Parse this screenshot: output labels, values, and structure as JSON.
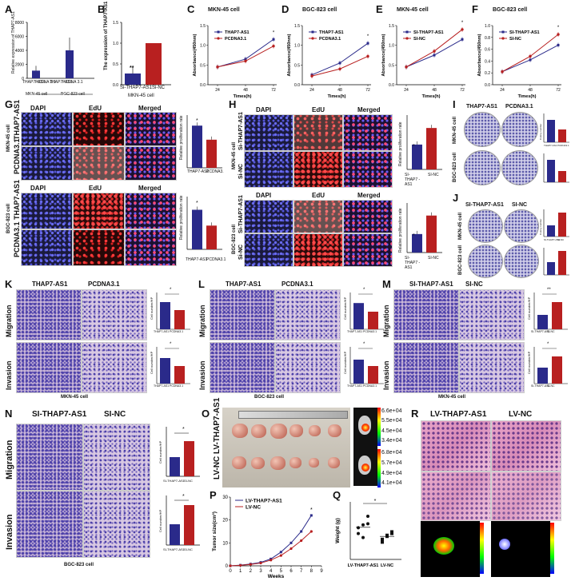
{
  "panels": {
    "A": {
      "letter": "A",
      "ylabel": "Relative expression of THAP7-AS1",
      "yticks": [
        "8000",
        "6000",
        "4000",
        "2000",
        "0"
      ],
      "xcats": [
        "THAP7 -AS1",
        "PCDNA 3.1",
        "THAP7 -AS1",
        "PCDNA 3.1"
      ],
      "groups": [
        "MKN-45 cell",
        "BGC-823 cell"
      ]
    },
    "B": {
      "letter": "B",
      "ylabel": "The expression of THAP7-AS1",
      "yticks": [
        "1.5",
        "1.0",
        "0.5",
        "0.0"
      ],
      "xcats": [
        "Si-THAP7-AS1",
        "Si-NC"
      ],
      "sig": "**",
      "caption": "MKN-45 cell"
    },
    "C": {
      "letter": "C",
      "title": "MKN-45 cell",
      "legend": [
        "THAP7-AS1",
        "PCDNA3.1"
      ],
      "ylabel": "Absorbance(450nm)",
      "xlabel": "Times(h)",
      "yticks": [
        "1.5",
        "1.0",
        "0.5",
        "0.0"
      ],
      "xticks": [
        "24",
        "48",
        "72"
      ],
      "sig": "*"
    },
    "D": {
      "letter": "D",
      "title": "BGC-823 cell",
      "legend": [
        "THAP7-AS1",
        "PCDNA3.1"
      ],
      "ylabel": "Absorbance(450nm)",
      "xlabel": "Times(h)",
      "yticks": [
        "1.5",
        "1.0",
        "0.5",
        "0.0"
      ],
      "xticks": [
        "24",
        "48",
        "72"
      ],
      "sig": "*"
    },
    "E": {
      "letter": "E",
      "title": "MKN-45 cell",
      "legend": [
        "SI-THAP7-AS1",
        "SI-NC"
      ],
      "ylabel": "Absorbance(450nm)",
      "xlabel": "Times(h)",
      "yticks": [
        "1.5",
        "1.0",
        "0.5",
        "0.0"
      ],
      "xticks": [
        "24",
        "48",
        "72"
      ],
      "sig": "*"
    },
    "F": {
      "letter": "F",
      "title": "BGC-823 cell",
      "legend": [
        "SI-THAP7-AS1",
        "SI-NC"
      ],
      "ylabel": "Absorbance(450nm)",
      "xlabel": "Times(h)",
      "yticks": [
        "1.0",
        "0.8",
        "0.6",
        "0.4",
        "0.2",
        "0.0"
      ],
      "xticks": [
        "24",
        "48",
        "72"
      ],
      "sig": "*"
    },
    "G": {
      "letter": "G",
      "cols": [
        "DAPI",
        "EdU",
        "Merged"
      ],
      "cell_top": "MKN-45 cell",
      "cell_bottom": "BGC-823 cell",
      "rows": [
        "THAP7-AS1",
        "PCDNA3.1"
      ],
      "ylabel": "Relative proliferation rate",
      "xcats": [
        "THAP7-AS1",
        "PCDNA3."
      ],
      "xcats_b": [
        "THAP7-AS1",
        "PCDNA3.1"
      ],
      "sig": "*"
    },
    "H": {
      "letter": "H",
      "cols": [
        "DAPI",
        "EdU",
        "Merged"
      ],
      "cell_top": "MKN-45 cell",
      "cell_bottom": "BGC-823 cell",
      "rows": [
        "Si-THAP7-AS1",
        "Si-NC"
      ],
      "ylabel": "Relative proliferation rate",
      "xcats": [
        "SI-THAP7 -AS1",
        "SI-NC"
      ],
      "sig": "*"
    },
    "I": {
      "letter": "I",
      "cols": [
        "THAP7-AS1",
        "PCDNA3.1"
      ],
      "rows": [
        "MKN-45 cell",
        "BGC-823 cell"
      ],
      "ylabel": "Colony number",
      "xcats": [
        "THAP7-AS1",
        "PCDNA3.1"
      ]
    },
    "J": {
      "letter": "J",
      "cols": [
        "SI-THAP7-AS1",
        "SI-NC"
      ],
      "rows": [
        "MKN-45 cell",
        "BGC-823 cell"
      ],
      "ylabel": "Colony number",
      "xcats": [
        "SI-THAP7-AS1",
        "SI-NC"
      ]
    },
    "K": {
      "letter": "K",
      "cols": [
        "THAP7-AS1",
        "PCDNA3.1"
      ],
      "rows": [
        "Migration",
        "Invasion"
      ],
      "caption": "MKN-45 cell",
      "ylabel": "Cell number/HP",
      "xcats": [
        "THAP7-AS1",
        "PCDNA3.1"
      ],
      "sig": "*"
    },
    "L": {
      "letter": "L",
      "cols": [
        "THAP7-AS1",
        "PCDNA3.1"
      ],
      "rows": [
        "Migration",
        "Invasion"
      ],
      "caption": "BGC-823 cell",
      "ylabel": "Cell number/HP",
      "xcats": [
        "THAP7-AS1",
        "PCDNA3.1"
      ],
      "sig": "*"
    },
    "M": {
      "letter": "M",
      "cols": [
        "SI-THAP7-AS1",
        "SI-NC"
      ],
      "rows": [
        "Migration",
        "Invasion"
      ],
      "caption": "MKN-45 cell",
      "ylabel": "Cell number/HP",
      "xcats": [
        "SI-THAP7-AS1",
        "SI-NC"
      ],
      "sig": "**",
      "sig2": "*"
    },
    "N": {
      "letter": "N",
      "cols": [
        "SI-THAP7-AS1",
        "SI-NC"
      ],
      "rows": [
        "Migration",
        "Invasion"
      ],
      "caption": "BGC-823 cell",
      "ylabel": "Cell number/HP",
      "xcats": [
        "SI-THAP7-AS1",
        "SI-NC"
      ],
      "sig": "*"
    },
    "O": {
      "letter": "O",
      "rows": [
        "LV-NC",
        "LV-THAP7-AS1"
      ],
      "scale_top": [
        "6.6e+04",
        "5.5e+04",
        "4.5e+04",
        "3.4e+04"
      ],
      "scale_bottom": [
        "6.8e+04",
        "5.7e+04",
        "4.9e+04",
        "4.1e+04"
      ]
    },
    "P": {
      "letter": "P",
      "legend": [
        "LV-THAP7-AS1",
        "LV-NC"
      ],
      "ylabel": "Tumor size(cm³)",
      "xlabel": "Weeks",
      "yticks": [
        "30",
        "20",
        "10",
        "0"
      ],
      "xticks": [
        "0",
        "1",
        "2",
        "3",
        "4",
        "5",
        "6",
        "7",
        "8",
        "9"
      ],
      "sig": "*"
    },
    "Q": {
      "letter": "Q",
      "ylabel": "Weight (g)",
      "xcats": [
        "LV-THAP7-AS1",
        "LV-NC"
      ],
      "sig": "*"
    },
    "R": {
      "letter": "R",
      "cols": [
        "LV-THAP7-AS1",
        "LV-NC"
      ]
    }
  },
  "chart_data": [
    {
      "type": "bar",
      "panel": "A",
      "categories": [
        "THAP7-AS1 (MKN-45)",
        "PCDNA3.1 (MKN-45)",
        "THAP7-AS1 (BGC-823)",
        "PCDNA3.1 (BGC-823)"
      ],
      "values": [
        1100,
        5,
        4000,
        5
      ],
      "ylim": [
        0,
        8000
      ]
    },
    {
      "type": "bar",
      "panel": "B",
      "categories": [
        "Si-THAP7-AS1",
        "Si-NC"
      ],
      "values": [
        0.27,
        1.0
      ],
      "ylim": [
        0,
        1.5
      ]
    },
    {
      "type": "line",
      "panel": "C",
      "x": [
        24,
        48,
        72
      ],
      "series": [
        {
          "name": "THAP7-AS1",
          "values": [
            0.45,
            0.65,
            1.15
          ]
        },
        {
          "name": "PCDNA3.1",
          "values": [
            0.45,
            0.6,
            0.98
          ]
        }
      ],
      "ylim": [
        0,
        1.5
      ]
    },
    {
      "type": "line",
      "panel": "D",
      "x": [
        24,
        48,
        72
      ],
      "series": [
        {
          "name": "THAP7-AS1",
          "values": [
            0.25,
            0.55,
            1.05
          ]
        },
        {
          "name": "PCDNA3.1",
          "values": [
            0.22,
            0.4,
            0.72
          ]
        }
      ],
      "ylim": [
        0,
        1.5
      ]
    },
    {
      "type": "line",
      "panel": "E",
      "x": [
        24,
        48,
        72
      ],
      "series": [
        {
          "name": "SI-THAP7-AS1",
          "values": [
            0.45,
            0.75,
            1.15
          ]
        },
        {
          "name": "SI-NC",
          "values": [
            0.45,
            0.85,
            1.4
          ]
        }
      ],
      "ylim": [
        0,
        1.5
      ]
    },
    {
      "type": "line",
      "panel": "F",
      "x": [
        24,
        48,
        72
      ],
      "series": [
        {
          "name": "SI-THAP7-AS1",
          "values": [
            0.22,
            0.42,
            0.67
          ]
        },
        {
          "name": "SI-NC",
          "values": [
            0.22,
            0.48,
            0.85
          ]
        }
      ],
      "ylim": [
        0,
        1.0
      ]
    },
    {
      "type": "bar",
      "panel": "G-top",
      "categories": [
        "THAP7-AS1",
        "PCDNA3."
      ],
      "values": [
        0.48,
        0.32
      ]
    },
    {
      "type": "bar",
      "panel": "G-bottom",
      "categories": [
        "THAP7-AS1",
        "PCDNA3.1"
      ],
      "values": [
        0.45,
        0.27
      ]
    },
    {
      "type": "bar",
      "panel": "H-top",
      "categories": [
        "SI-THAP7 -AS1",
        "SI-NC"
      ],
      "values": [
        0.33,
        0.55
      ]
    },
    {
      "type": "bar",
      "panel": "H-bottom",
      "categories": [
        "SI-THAP7 -AS1",
        "SI-NC"
      ],
      "values": [
        0.27,
        0.54
      ]
    },
    {
      "type": "line",
      "panel": "P",
      "x": [
        0,
        1,
        2,
        3,
        4,
        5,
        6,
        7,
        8
      ],
      "series": [
        {
          "name": "LV-THAP7-AS1",
          "values": [
            0,
            0.3,
            0.8,
            1.5,
            3,
            6,
            10,
            15,
            22
          ]
        },
        {
          "name": "LV-NC",
          "values": [
            0,
            0.2,
            0.6,
            1.2,
            2.5,
            4.5,
            7.5,
            11,
            15
          ]
        }
      ],
      "ylim": [
        0,
        30
      ]
    },
    {
      "type": "scatter",
      "panel": "Q",
      "categories": [
        "LV-THAP7-AS1",
        "LV-NC"
      ],
      "values": [
        [
          4.5,
          6,
          7.5,
          5.5,
          3.8,
          6.2
        ],
        [
          3,
          4,
          4.5,
          3.5,
          4.2,
          4.8
        ]
      ]
    }
  ],
  "colors": {
    "blue": "#2a2a8a",
    "red": "#b82020",
    "bar_blue": "#2a2a8a",
    "bar_red": "#b82020"
  }
}
